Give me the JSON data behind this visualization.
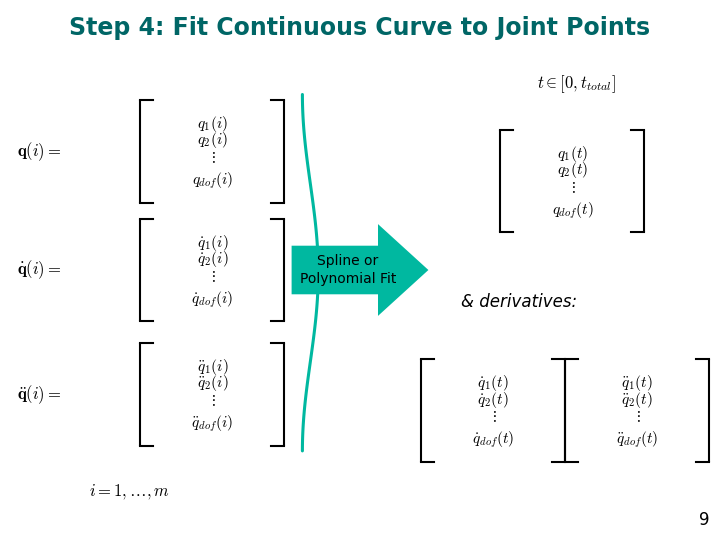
{
  "title": "Step 4: Fit Continuous Curve to Joint Points",
  "title_color": "#006666",
  "title_fontsize": 17,
  "background_color": "#ffffff",
  "arrow_color": "#00b8a0",
  "arrow_text": "Spline or\nPolynomial Fit",
  "arrow_text_color": "#000000",
  "arrow_text_fontsize": 10,
  "brace_color": "#00b8a0",
  "page_number": "9",
  "latex_color": "#000000",
  "deriv_text": "& derivatives:"
}
